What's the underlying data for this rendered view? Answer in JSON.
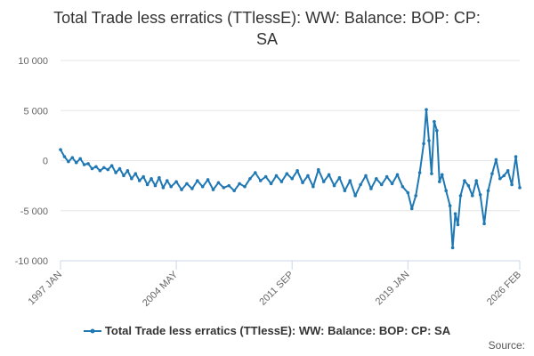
{
  "chart_data": {
    "type": "line",
    "title_line1": "Total Trade less erratics (TTlessE): WW: Balance: BOP: CP:",
    "title_line2": "SA",
    "xlabel": "",
    "ylabel": "",
    "ylim": [
      -10000,
      10000
    ],
    "y_ticks": [
      "10 000",
      "5 000",
      "0",
      "-5 000",
      "-10 000"
    ],
    "y_tick_values": [
      10000,
      5000,
      0,
      -5000,
      -10000
    ],
    "x_ticks": [
      "1997 JAN",
      "2004 MAY",
      "2011 SEP",
      "2019 JAN",
      "2026 FEB"
    ],
    "x_tick_values": [
      "1997-01",
      "2004-05",
      "2011-09",
      "2019-01",
      "2026-02"
    ],
    "grid": "horizontal",
    "legend_position": "bottom",
    "series": [
      {
        "name": "Total Trade less erratics (TTlessE): WW: Balance: BOP: CP: SA",
        "color": "#1f78b4",
        "points": [
          [
            "1997-01",
            1100
          ],
          [
            "1997-04",
            400
          ],
          [
            "1997-07",
            -100
          ],
          [
            "1997-10",
            300
          ],
          [
            "1998-01",
            -200
          ],
          [
            "1998-04",
            200
          ],
          [
            "1998-07",
            -400
          ],
          [
            "1998-10",
            -300
          ],
          [
            "1999-01",
            -800
          ],
          [
            "1999-04",
            -600
          ],
          [
            "1999-07",
            -1000
          ],
          [
            "1999-10",
            -700
          ],
          [
            "2000-01",
            -900
          ],
          [
            "2000-04",
            -500
          ],
          [
            "2000-07",
            -1200
          ],
          [
            "2000-10",
            -800
          ],
          [
            "2001-01",
            -1500
          ],
          [
            "2001-04",
            -1000
          ],
          [
            "2001-07",
            -1800
          ],
          [
            "2001-10",
            -1300
          ],
          [
            "2002-01",
            -2000
          ],
          [
            "2002-04",
            -1600
          ],
          [
            "2002-07",
            -2400
          ],
          [
            "2002-10",
            -1800
          ],
          [
            "2003-01",
            -2500
          ],
          [
            "2003-04",
            -1700
          ],
          [
            "2003-07",
            -2700
          ],
          [
            "2003-10",
            -2000
          ],
          [
            "2004-01",
            -2600
          ],
          [
            "2004-05",
            -2100
          ],
          [
            "2004-09",
            -2900
          ],
          [
            "2005-01",
            -2300
          ],
          [
            "2005-05",
            -2800
          ],
          [
            "2005-09",
            -2000
          ],
          [
            "2006-01",
            -2600
          ],
          [
            "2006-05",
            -1900
          ],
          [
            "2006-09",
            -2900
          ],
          [
            "2007-01",
            -2200
          ],
          [
            "2007-05",
            -2700
          ],
          [
            "2007-09",
            -2500
          ],
          [
            "2008-01",
            -3000
          ],
          [
            "2008-05",
            -2300
          ],
          [
            "2008-09",
            -2600
          ],
          [
            "2009-01",
            -1800
          ],
          [
            "2009-05",
            -1200
          ],
          [
            "2009-09",
            -2000
          ],
          [
            "2010-01",
            -1600
          ],
          [
            "2010-05",
            -2300
          ],
          [
            "2010-09",
            -1500
          ],
          [
            "2011-01",
            -2100
          ],
          [
            "2011-05",
            -1300
          ],
          [
            "2011-09",
            -1800
          ],
          [
            "2012-01",
            -1000
          ],
          [
            "2012-05",
            -2200
          ],
          [
            "2012-09",
            -1500
          ],
          [
            "2013-01",
            -2600
          ],
          [
            "2013-05",
            -900
          ],
          [
            "2013-09",
            -2100
          ],
          [
            "2014-01",
            -1400
          ],
          [
            "2014-05",
            -2500
          ],
          [
            "2014-09",
            -1700
          ],
          [
            "2015-01",
            -3000
          ],
          [
            "2015-05",
            -2000
          ],
          [
            "2015-09",
            -3500
          ],
          [
            "2016-01",
            -2400
          ],
          [
            "2016-05",
            -1500
          ],
          [
            "2016-09",
            -2800
          ],
          [
            "2017-01",
            -1800
          ],
          [
            "2017-05",
            -2400
          ],
          [
            "2017-09",
            -1600
          ],
          [
            "2018-01",
            -2300
          ],
          [
            "2018-05",
            -1400
          ],
          [
            "2018-09",
            -2600
          ],
          [
            "2019-01",
            -3200
          ],
          [
            "2019-04",
            -4800
          ],
          [
            "2019-07",
            -3500
          ],
          [
            "2019-10",
            -1200
          ],
          [
            "2020-01",
            1700
          ],
          [
            "2020-03",
            5100
          ],
          [
            "2020-05",
            2000
          ],
          [
            "2020-07",
            -1300
          ],
          [
            "2020-09",
            3900
          ],
          [
            "2020-11",
            3000
          ],
          [
            "2021-01",
            -2100
          ],
          [
            "2021-03",
            -1400
          ],
          [
            "2021-06",
            -3000
          ],
          [
            "2021-09",
            -4500
          ],
          [
            "2021-11",
            -8700
          ],
          [
            "2022-01",
            -5300
          ],
          [
            "2022-03",
            -6400
          ],
          [
            "2022-05",
            -3500
          ],
          [
            "2022-08",
            -2000
          ],
          [
            "2022-11",
            -2500
          ],
          [
            "2023-02",
            -3500
          ],
          [
            "2023-05",
            -2000
          ],
          [
            "2023-08",
            -3400
          ],
          [
            "2023-11",
            -6300
          ],
          [
            "2024-02",
            -3000
          ],
          [
            "2024-05",
            -1300
          ],
          [
            "2024-08",
            100
          ],
          [
            "2024-11",
            -1800
          ],
          [
            "2025-02",
            -1500
          ],
          [
            "2025-05",
            -1000
          ],
          [
            "2025-08",
            -2400
          ],
          [
            "2025-11",
            400
          ],
          [
            "2026-02",
            -2700
          ]
        ]
      }
    ]
  },
  "source_label": "Source:"
}
